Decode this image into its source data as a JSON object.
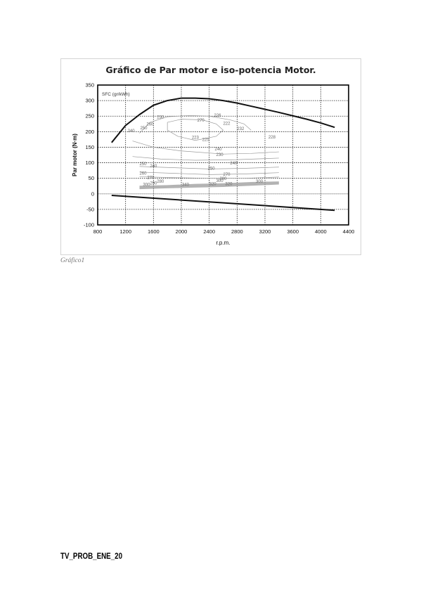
{
  "document": {
    "caption": "Gráfico1",
    "code": "TV_PROB_ENE_20"
  },
  "chart_data": {
    "type": "line",
    "title": "Gráfico de Par motor e iso-potencia Motor.",
    "xlabel": "r.p.m.",
    "ylabel": "Par motor (N·m)",
    "xlim": [
      800,
      4400
    ],
    "ylim": [
      -100,
      350
    ],
    "xticks": [
      800,
      1200,
      1600,
      2000,
      2400,
      2800,
      3200,
      3600,
      4000,
      4400
    ],
    "yticks": [
      -100,
      -50,
      0,
      50,
      100,
      150,
      200,
      250,
      300,
      350
    ],
    "grid": true,
    "contour_legend": "SFC (gr/kWh)",
    "series": [
      {
        "role": "full-load-torque",
        "color": "#111111",
        "x": [
          1000,
          1200,
          1400,
          1600,
          1800,
          2000,
          2200,
          2400,
          2600,
          2800,
          3000,
          3200,
          3400,
          3600,
          3800,
          4000,
          4200
        ],
        "y": [
          165,
          220,
          255,
          285,
          300,
          308,
          308,
          306,
          300,
          292,
          282,
          272,
          262,
          251,
          240,
          228,
          214
        ]
      },
      {
        "role": "motoring-torque",
        "color": "#111111",
        "x": [
          1000,
          4200
        ],
        "y": [
          -5,
          -53
        ]
      }
    ],
    "contour_labels": [
      {
        "text": "230",
        "x": 1700,
        "y": 243
      },
      {
        "text": "240",
        "x": 1280,
        "y": 198
      },
      {
        "text": "250",
        "x": 1460,
        "y": 208
      },
      {
        "text": "260",
        "x": 1550,
        "y": 220
      },
      {
        "text": "270",
        "x": 2280,
        "y": 232
      },
      {
        "text": "226",
        "x": 2520,
        "y": 248
      },
      {
        "text": "222",
        "x": 2650,
        "y": 222
      },
      {
        "text": "223",
        "x": 2200,
        "y": 177
      },
      {
        "text": "225",
        "x": 2350,
        "y": 170
      },
      {
        "text": "232",
        "x": 2850,
        "y": 205
      },
      {
        "text": "228",
        "x": 3300,
        "y": 178
      },
      {
        "text": "230",
        "x": 2550,
        "y": 122
      },
      {
        "text": "240",
        "x": 2530,
        "y": 140
      },
      {
        "text": "250",
        "x": 1450,
        "y": 92
      },
      {
        "text": "240",
        "x": 1600,
        "y": 85
      },
      {
        "text": "240",
        "x": 2750,
        "y": 95
      },
      {
        "text": "250",
        "x": 2430,
        "y": 77
      },
      {
        "text": "260",
        "x": 1450,
        "y": 62
      },
      {
        "text": "270",
        "x": 1560,
        "y": 48
      },
      {
        "text": "280",
        "x": 1700,
        "y": 36
      },
      {
        "text": "290",
        "x": 1600,
        "y": 30
      },
      {
        "text": "300",
        "x": 1500,
        "y": 26
      },
      {
        "text": "340",
        "x": 2060,
        "y": 26
      },
      {
        "text": "270",
        "x": 2650,
        "y": 58
      },
      {
        "text": "280",
        "x": 2600,
        "y": 45
      },
      {
        "text": "300",
        "x": 2550,
        "y": 38
      },
      {
        "text": "320",
        "x": 2450,
        "y": 28
      },
      {
        "text": "320",
        "x": 2680,
        "y": 28
      },
      {
        "text": "300",
        "x": 3120,
        "y": 36
      }
    ]
  }
}
